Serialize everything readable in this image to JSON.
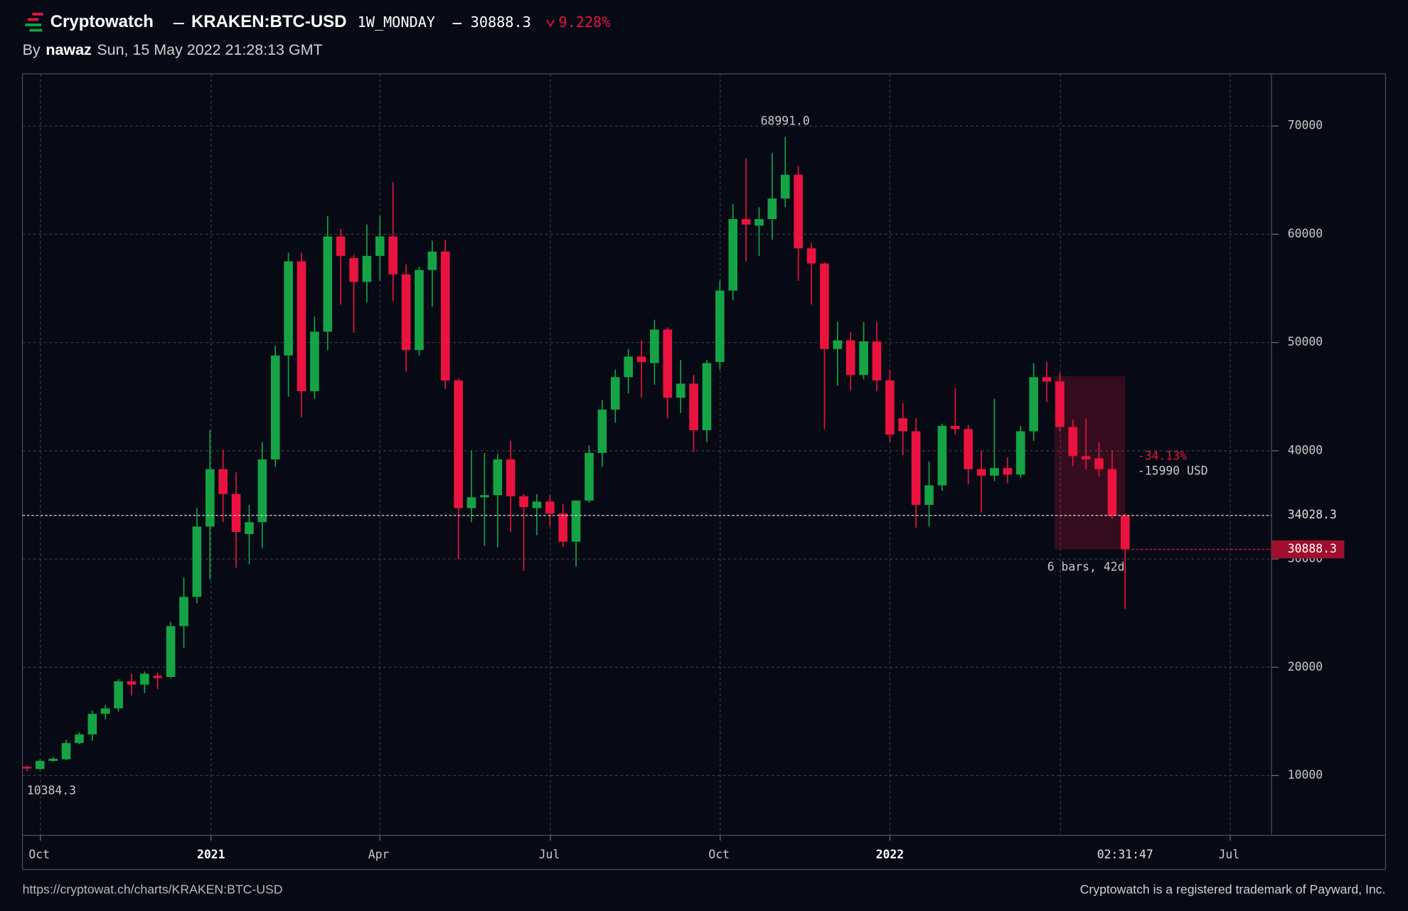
{
  "header": {
    "brand": "Cryptowatch",
    "market": "KRAKEN:BTC-USD",
    "interval": "1W_MONDAY",
    "change": {
      "value": 9.228,
      "label": "9.228%"
    },
    "change_direction": "down",
    "by": "By",
    "author": "nawaz",
    "timestamp": "Sun, 15 May 2022 21:28:13 GMT"
  },
  "footer": {
    "url": "https://cryptowat.ch/charts/KRAKEN:BTC-USD",
    "trademark": "Cryptowatch is a registered trademark of Payward, Inc."
  },
  "chart_data": {
    "type": "candlestick",
    "up_color": "#15a346",
    "down_color": "#ea1340",
    "grid": true,
    "open": [
      10800,
      10600,
      11350,
      11500,
      13000,
      13800,
      15700,
      16200,
      18700,
      18400,
      19200,
      19100,
      23800,
      26500,
      33000,
      38300,
      36000,
      32300,
      33400,
      39200,
      48800,
      57500,
      45500,
      51000,
      59800,
      57800,
      55600,
      58000,
      59800,
      56300,
      49300,
      56700,
      58400,
      46500,
      34700,
      35700,
      35900,
      39200,
      35800,
      34700,
      35300,
      34200,
      31600,
      35400,
      39800,
      43800,
      46800,
      48700,
      48100,
      51200,
      44900,
      46200,
      41900,
      48200,
      54800,
      61400,
      60800,
      61400,
      63300,
      65500,
      58700,
      57300,
      49400,
      50200,
      47000,
      50100,
      46500,
      43000,
      41800,
      35000,
      36800,
      42300,
      42000,
      38300,
      37700,
      38400,
      37800,
      41800,
      46800,
      46400,
      42200,
      39500,
      39300,
      38300,
      34000
    ],
    "high": [
      10900,
      11500,
      11700,
      13300,
      14000,
      16000,
      16500,
      18900,
      19400,
      19600,
      19500,
      24200,
      28300,
      34700,
      41900,
      40100,
      38000,
      35000,
      40800,
      49700,
      58300,
      58300,
      52400,
      61700,
      60500,
      58100,
      60900,
      61700,
      64800,
      57200,
      57000,
      59400,
      59500,
      46700,
      40000,
      39800,
      39700,
      40900,
      36000,
      36000,
      35900,
      35100,
      35400,
      40500,
      44700,
      47500,
      49400,
      50200,
      52100,
      51400,
      48400,
      47000,
      48400,
      55700,
      62800,
      67000,
      62500,
      67500,
      68991,
      66300,
      59200,
      57400,
      51900,
      51000,
      51900,
      51900,
      47500,
      44400,
      43000,
      39000,
      42500,
      45800,
      42400,
      40000,
      44800,
      39400,
      42300,
      48100,
      48200,
      47200,
      42900,
      43000,
      40800,
      40000,
      34200
    ],
    "low": [
      10384.3,
      10550,
      11250,
      11400,
      12900,
      13200,
      15200,
      15900,
      17400,
      17600,
      18000,
      19000,
      21800,
      25900,
      28100,
      33400,
      29200,
      29500,
      31000,
      38500,
      45000,
      43100,
      44800,
      49300,
      53500,
      50900,
      53700,
      55700,
      53800,
      47300,
      48800,
      53300,
      45700,
      30000,
      33400,
      31200,
      31100,
      32500,
      28900,
      32200,
      33000,
      31100,
      29300,
      35200,
      38500,
      42600,
      45300,
      44900,
      46100,
      43000,
      43500,
      39900,
      40800,
      47500,
      53900,
      57500,
      58000,
      59500,
      62500,
      55700,
      53500,
      42000,
      46000,
      45600,
      46600,
      45500,
      40800,
      39600,
      32900,
      33000,
      36300,
      41500,
      36900,
      34300,
      37200,
      37000,
      37500,
      40900,
      44500,
      41800,
      38600,
      38300,
      37600,
      33700,
      25400
    ],
    "close": [
      10650,
      11350,
      11550,
      13000,
      13800,
      15700,
      16200,
      18700,
      18400,
      19400,
      19000,
      23800,
      26500,
      33000,
      38300,
      36000,
      32500,
      33400,
      39200,
      48800,
      57500,
      45500,
      51000,
      59800,
      58000,
      55600,
      58000,
      59800,
      56300,
      49300,
      56700,
      58400,
      46500,
      34700,
      35700,
      35900,
      39200,
      35800,
      34800,
      35300,
      34200,
      31600,
      35400,
      39800,
      43800,
      46800,
      48700,
      48200,
      51200,
      44900,
      46200,
      41900,
      48100,
      54800,
      61400,
      60900,
      61400,
      63300,
      65500,
      58700,
      57300,
      49400,
      50200,
      47000,
      50100,
      46500,
      41500,
      41800,
      35000,
      36800,
      42300,
      42000,
      38300,
      37700,
      38400,
      37800,
      41800,
      46800,
      46400,
      42200,
      39500,
      39200,
      38300,
      34000,
      30888.3
    ],
    "xticks": [
      "Oct",
      "2021",
      "Apr",
      "Jul",
      "Oct",
      "2022",
      "Jul"
    ],
    "ylim": [
      4470,
      74820
    ],
    "yticks": [
      10000,
      20000,
      30000,
      40000,
      50000,
      60000,
      70000
    ],
    "high_annotation": {
      "value": 68991,
      "label": "68991.0"
    },
    "crosshair": {
      "price": 34028.3,
      "time": "02:31:47"
    },
    "measurement": {
      "change_pct": {
        "value": -34.13,
        "label": "-34.13%"
      },
      "change": {
        "value": -15990,
        "label": "-15990 USD"
      },
      "bars_label": "6 bars, 42d"
    }
  }
}
